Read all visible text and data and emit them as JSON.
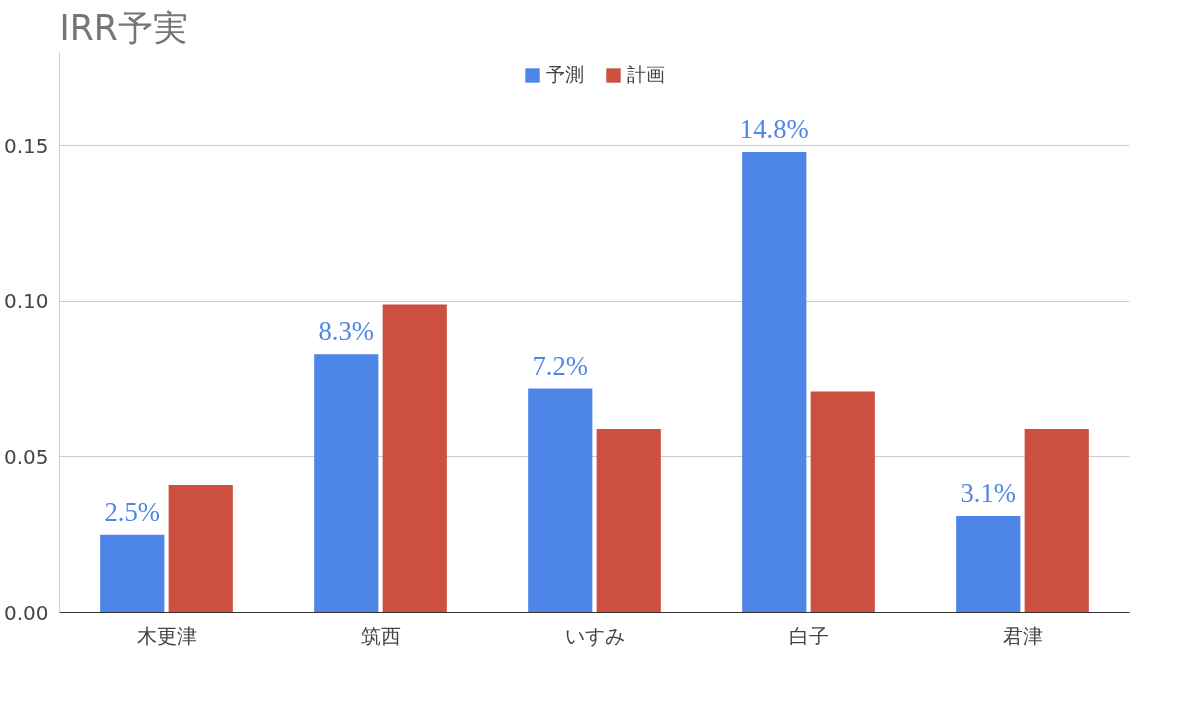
{
  "chart_data": {
    "type": "bar",
    "title": "IRR予実",
    "categories": [
      "木更津",
      "筑西",
      "いすみ",
      "白子",
      "君津"
    ],
    "series": [
      {
        "name": "予測",
        "color": "#4e86e8",
        "values": [
          0.025,
          0.083,
          0.072,
          0.148,
          0.031
        ],
        "value_labels": [
          "2.5%",
          "8.3%",
          "7.2%",
          "14.8%",
          "3.1%"
        ]
      },
      {
        "name": "計画",
        "color": "#cc4f3f",
        "values": [
          0.041,
          0.099,
          0.059,
          0.071,
          0.059
        ]
      }
    ],
    "ylim": [
      0,
      0.18
    ],
    "yticks": [
      "0.00",
      "0.05",
      "0.10",
      "0.15"
    ],
    "grid": "y",
    "legend": "top"
  }
}
